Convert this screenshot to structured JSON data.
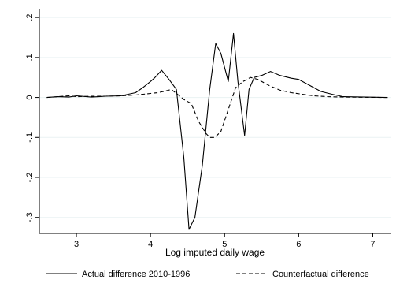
{
  "chart_data": {
    "type": "line",
    "title": "",
    "xlabel": "Log imputed daily wage",
    "ylabel": "",
    "xlim": [
      2.5,
      7.25
    ],
    "ylim": [
      -0.34,
      0.22
    ],
    "xticks": [
      3,
      4,
      5,
      6,
      7
    ],
    "yticks": [
      0.2,
      0.1,
      0,
      -0.1,
      -0.2,
      -0.3
    ],
    "xtick_labels": [
      "3",
      "4",
      "5",
      "6",
      "7"
    ],
    "ytick_labels": [
      ".2",
      ".1",
      "0",
      "-.1",
      "-.2",
      "-.3"
    ],
    "grid": "horizontal",
    "legend_position": "bottom",
    "series": [
      {
        "name": "Actual difference 2010-1996",
        "style": "solid",
        "color": "#000000",
        "x": [
          2.6,
          2.75,
          2.9,
          3.0,
          3.2,
          3.4,
          3.6,
          3.8,
          3.9,
          4.0,
          4.05,
          4.1,
          4.15,
          4.25,
          4.35,
          4.45,
          4.52,
          4.6,
          4.7,
          4.8,
          4.88,
          4.95,
          5.05,
          5.12,
          5.18,
          5.27,
          5.33,
          5.4,
          5.5,
          5.62,
          5.75,
          5.9,
          6.0,
          6.15,
          6.3,
          6.45,
          6.6,
          7.2
        ],
        "y": [
          0,
          0.002,
          0.001,
          0.004,
          0.001,
          0.003,
          0.004,
          0.012,
          0.025,
          0.04,
          0.048,
          0.058,
          0.068,
          0.045,
          0.02,
          -0.15,
          -0.33,
          -0.3,
          -0.17,
          0.02,
          0.135,
          0.11,
          0.04,
          0.16,
          0.04,
          -0.095,
          0.02,
          0.05,
          0.055,
          0.065,
          0.055,
          0.048,
          0.045,
          0.03,
          0.015,
          0.008,
          0.002,
          0.0
        ]
      },
      {
        "name": "Counterfactual difference",
        "style": "dashed",
        "color": "#000000",
        "x": [
          2.6,
          2.75,
          2.9,
          3.0,
          3.2,
          3.4,
          3.6,
          3.8,
          3.9,
          4.0,
          4.1,
          4.2,
          4.28,
          4.35,
          4.45,
          4.55,
          4.65,
          4.75,
          4.8,
          4.87,
          4.95,
          5.05,
          5.15,
          5.25,
          5.35,
          5.45,
          5.6,
          5.75,
          5.9,
          6.05,
          6.2,
          6.4,
          6.6,
          7.2
        ],
        "y": [
          0,
          0.002,
          0.004,
          0.002,
          0.003,
          0.003,
          0.004,
          0.006,
          0.008,
          0.01,
          0.012,
          0.016,
          0.02,
          0.01,
          -0.005,
          -0.015,
          -0.06,
          -0.09,
          -0.1,
          -0.1,
          -0.085,
          -0.03,
          0.025,
          0.04,
          0.05,
          0.045,
          0.03,
          0.018,
          0.012,
          0.008,
          0.004,
          0.002,
          0.001,
          0.0
        ]
      }
    ]
  }
}
